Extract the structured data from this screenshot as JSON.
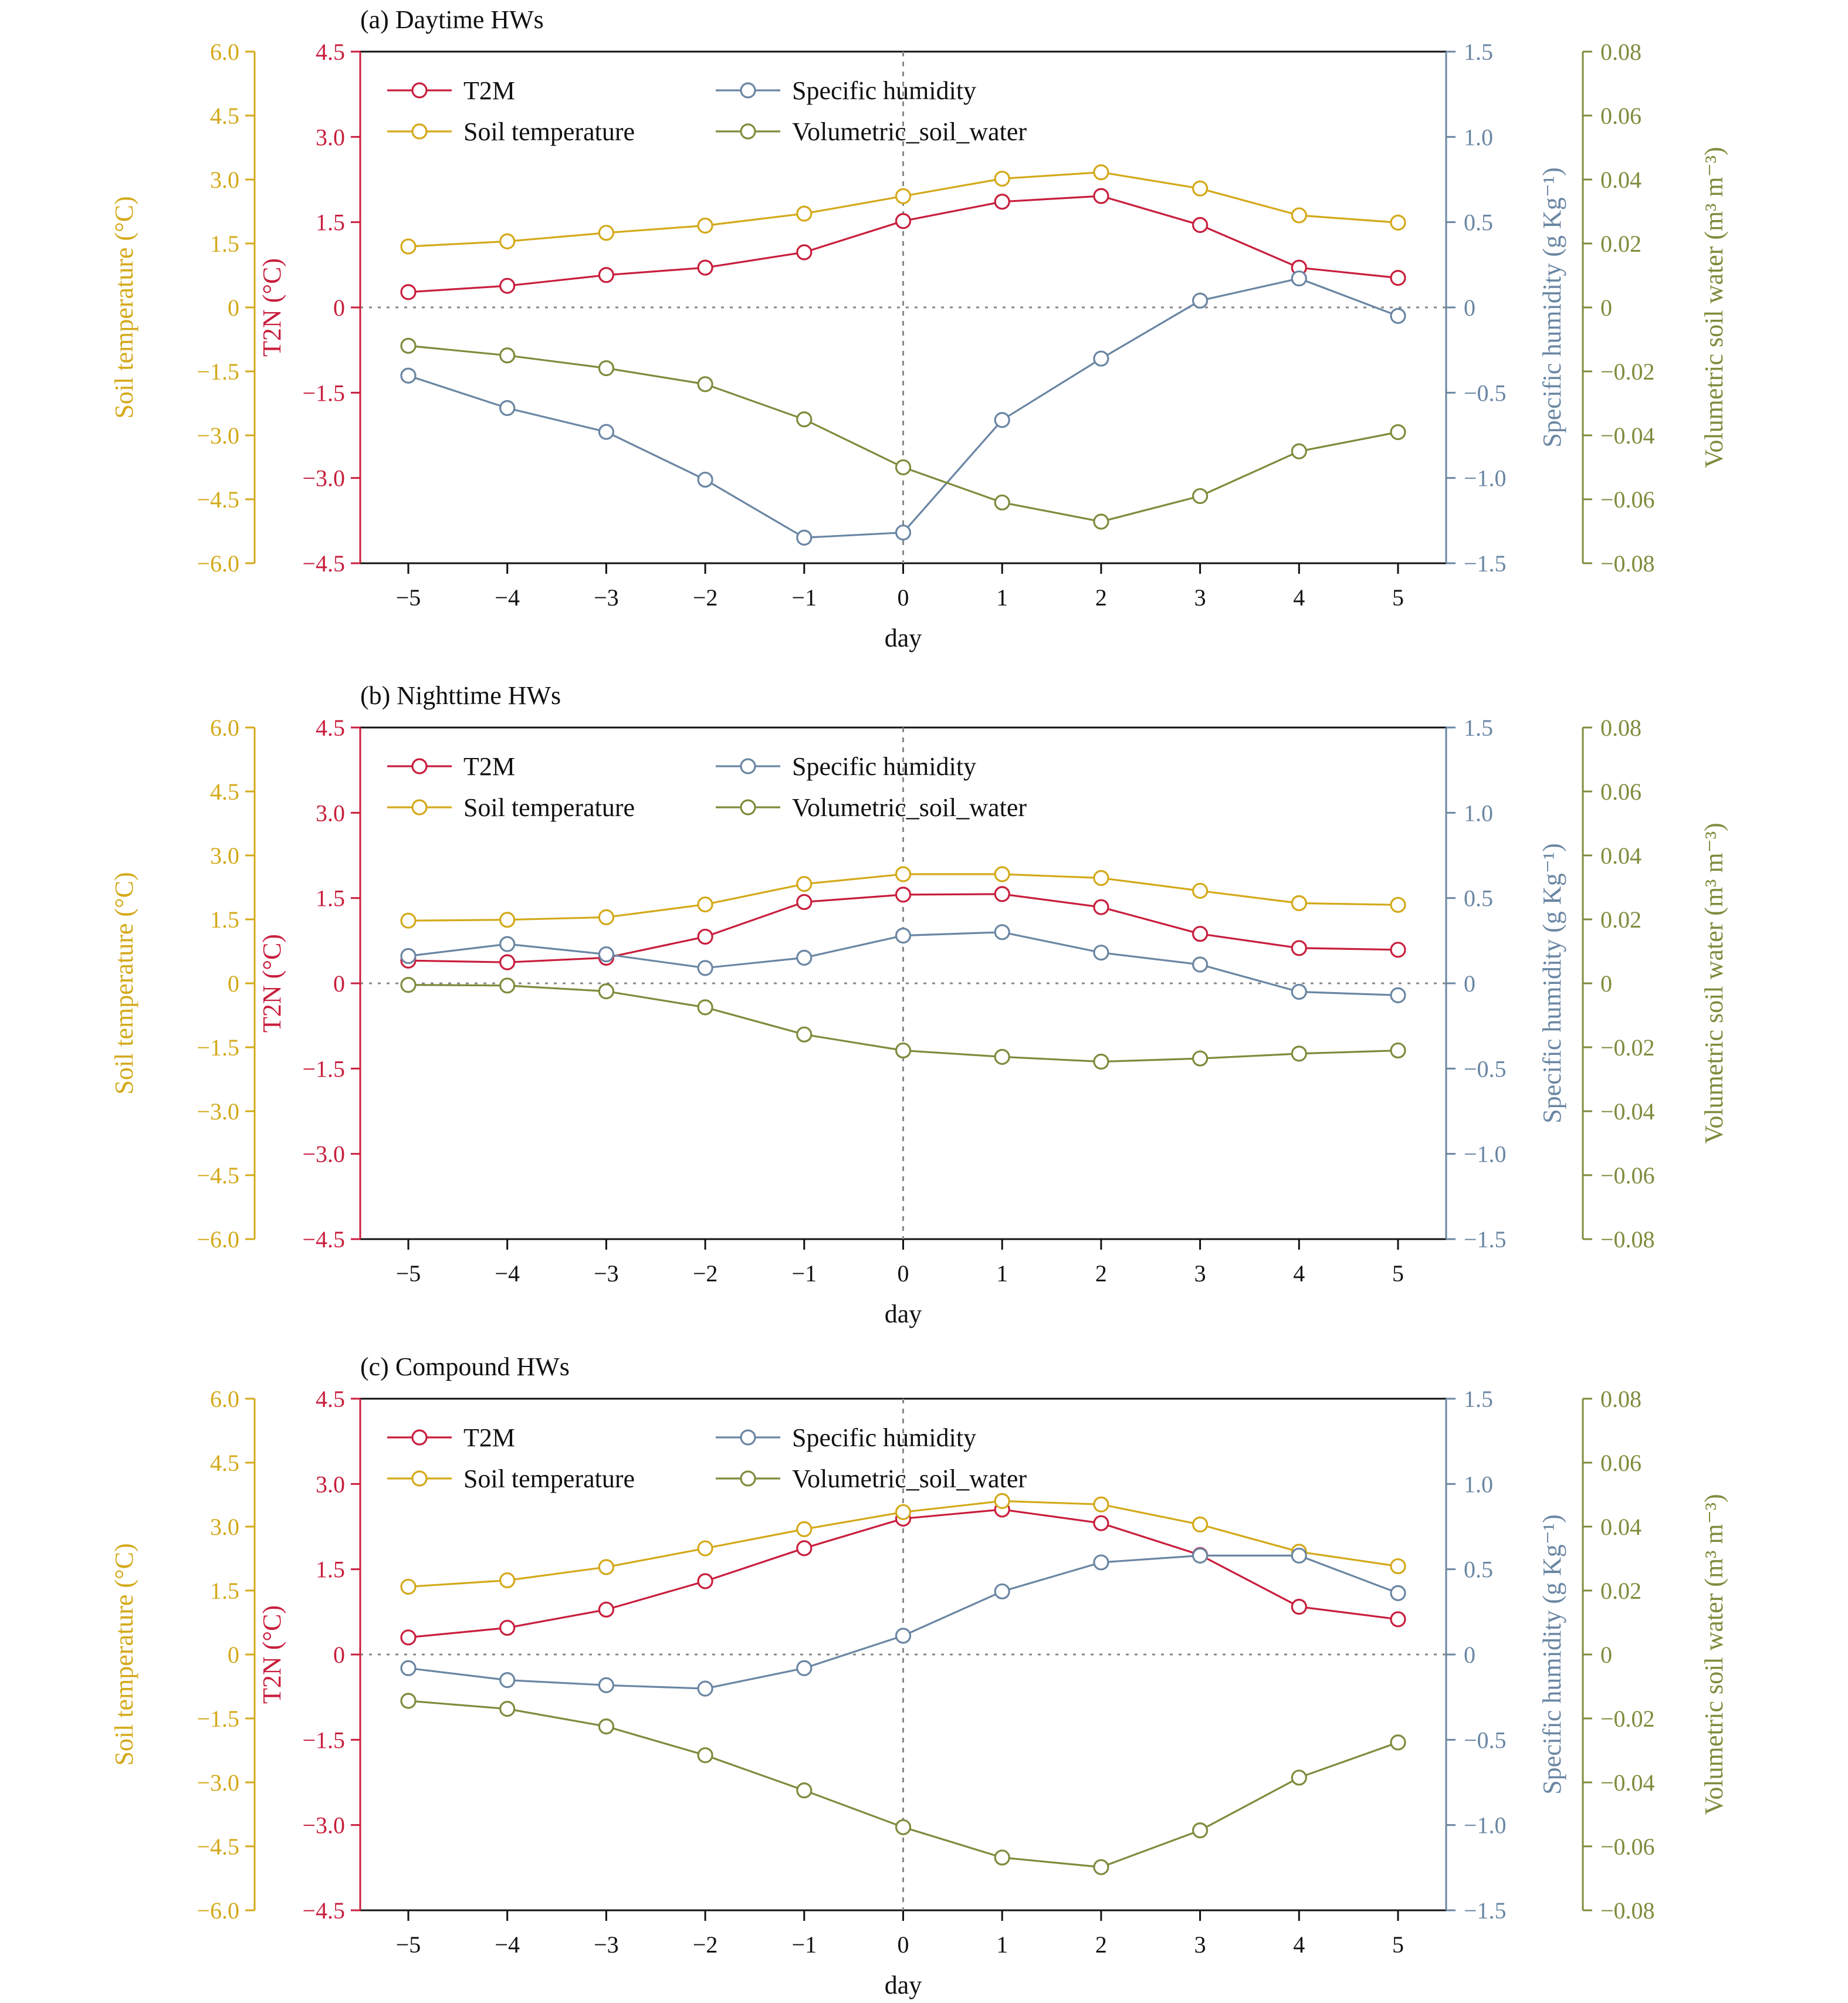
{
  "colors": {
    "t2m": "#c81e3c",
    "soil_temperature": "#d4a91a",
    "specific_humidity": "#6a86a3",
    "volumetric_soil_water": "#7d8c3c"
  },
  "chart_data": [
    {
      "type": "line",
      "title": "(a) Daytime HWs",
      "xlabel": "day",
      "x": [
        -5,
        -4,
        -3,
        -2,
        -1,
        0,
        1,
        2,
        3,
        4,
        5
      ],
      "x_tick_labels": [
        "−5",
        "−4",
        "−3",
        "−2",
        "−1",
        "0",
        "1",
        "2",
        "3",
        "4",
        "5"
      ],
      "axes": {
        "soil": {
          "label": "Soil temperature (°C)",
          "lim": [
            -6,
            6
          ],
          "ticks": [
            "6.0",
            "4.5",
            "3.0",
            "1.5",
            "0",
            "−1.5",
            "−3.0",
            "−4.5",
            "−6.0"
          ]
        },
        "t2m": {
          "label": "T2N (°C)",
          "lim": [
            -4.5,
            4.5
          ],
          "ticks": [
            "4.5",
            "3.0",
            "1.5",
            "0",
            "−1.5",
            "−3.0",
            "−4.5"
          ]
        },
        "humidity": {
          "label": "Specific humidity (g Kg⁻¹)",
          "lim": [
            -1.5,
            1.5
          ],
          "ticks": [
            "1.5",
            "1.0",
            "0.5",
            "0",
            "−0.5",
            "−1.0",
            "−1.5"
          ]
        },
        "water": {
          "label": "Volumetric soil water (m³ m⁻³)",
          "lim": [
            -0.08,
            0.08
          ],
          "ticks": [
            "0.08",
            "0.06",
            "0.04",
            "0.02",
            "0",
            "−0.02",
            "−0.04",
            "−0.06",
            "−0.08"
          ]
        }
      },
      "series": [
        {
          "name": "T2M",
          "axis": "t2m",
          "values": [
            0.27,
            0.38,
            0.57,
            0.7,
            0.97,
            1.52,
            1.86,
            1.96,
            1.45,
            0.7,
            0.52
          ]
        },
        {
          "name": "Soil temperature",
          "axis": "soil",
          "values": [
            1.43,
            1.55,
            1.75,
            1.92,
            2.2,
            2.61,
            3.02,
            3.17,
            2.79,
            2.16,
            1.99
          ]
        },
        {
          "name": "Specific humidity",
          "axis": "humidity",
          "values": [
            -0.4,
            -0.59,
            -0.73,
            -1.01,
            -1.35,
            -1.32,
            -0.66,
            -0.3,
            0.04,
            0.17,
            -0.05
          ]
        },
        {
          "name": "Volumetric_soil_water",
          "axis": "water",
          "values": [
            -0.012,
            -0.015,
            -0.019,
            -0.024,
            -0.035,
            -0.05,
            -0.061,
            -0.067,
            -0.059,
            -0.045,
            -0.039
          ]
        }
      ]
    },
    {
      "type": "line",
      "title": "(b) Nighttime HWs",
      "xlabel": "day",
      "x": [
        -5,
        -4,
        -3,
        -2,
        -1,
        0,
        1,
        2,
        3,
        4,
        5
      ],
      "x_tick_labels": [
        "−5",
        "−4",
        "−3",
        "−2",
        "−1",
        "0",
        "1",
        "2",
        "3",
        "4",
        "5"
      ],
      "axes": {
        "soil": {
          "label": "Soil temperature (°C)",
          "lim": [
            -6,
            6
          ],
          "ticks": [
            "6.0",
            "4.5",
            "3.0",
            "1.5",
            "0",
            "−1.5",
            "−3.0",
            "−4.5",
            "−6.0"
          ]
        },
        "t2m": {
          "label": "T2N (°C)",
          "lim": [
            -4.5,
            4.5
          ],
          "ticks": [
            "4.5",
            "3.0",
            "1.5",
            "0",
            "−1.5",
            "−3.0",
            "−4.5"
          ]
        },
        "humidity": {
          "label": "Specific humidity (g Kg⁻¹)",
          "lim": [
            -1.5,
            1.5
          ],
          "ticks": [
            "1.5",
            "1.0",
            "0.5",
            "0",
            "−0.5",
            "−1.0",
            "−1.5"
          ]
        },
        "water": {
          "label": "Volumetric soil water (m³ m⁻³)",
          "lim": [
            -0.08,
            0.08
          ],
          "ticks": [
            "0.08",
            "0.06",
            "0.04",
            "0.02",
            "0",
            "−0.02",
            "−0.04",
            "−0.06",
            "−0.08"
          ]
        }
      },
      "series": [
        {
          "name": "T2M",
          "axis": "t2m",
          "values": [
            0.4,
            0.37,
            0.45,
            0.82,
            1.43,
            1.56,
            1.57,
            1.34,
            0.87,
            0.62,
            0.59
          ]
        },
        {
          "name": "Soil temperature",
          "axis": "soil",
          "values": [
            1.47,
            1.49,
            1.55,
            1.85,
            2.33,
            2.56,
            2.56,
            2.47,
            2.17,
            1.88,
            1.84
          ]
        },
        {
          "name": "Specific humidity",
          "axis": "humidity",
          "values": [
            0.16,
            0.23,
            0.17,
            0.09,
            0.15,
            0.28,
            0.3,
            0.18,
            0.11,
            -0.05,
            -0.07
          ]
        },
        {
          "name": "Volumetric_soil_water",
          "axis": "water",
          "values": [
            -0.0005,
            -0.0007,
            -0.0025,
            -0.0075,
            -0.016,
            -0.021,
            -0.023,
            -0.0245,
            -0.0235,
            -0.022,
            -0.021
          ]
        }
      ]
    },
    {
      "type": "line",
      "title": "(c) Compound HWs",
      "xlabel": "day",
      "x": [
        -5,
        -4,
        -3,
        -2,
        -1,
        0,
        1,
        2,
        3,
        4,
        5
      ],
      "x_tick_labels": [
        "−5",
        "−4",
        "−3",
        "−2",
        "−1",
        "0",
        "1",
        "2",
        "3",
        "4",
        "5"
      ],
      "axes": {
        "soil": {
          "label": "Soil temperature (°C)",
          "lim": [
            -6,
            6
          ],
          "ticks": [
            "6.0",
            "4.5",
            "3.0",
            "1.5",
            "0",
            "−1.5",
            "−3.0",
            "−4.5",
            "−6.0"
          ]
        },
        "t2m": {
          "label": "T2N (°C)",
          "lim": [
            -4.5,
            4.5
          ],
          "ticks": [
            "4.5",
            "3.0",
            "1.5",
            "0",
            "−1.5",
            "−3.0",
            "−4.5"
          ]
        },
        "humidity": {
          "label": "Specific humidity (g Kg⁻¹)",
          "lim": [
            -1.5,
            1.5
          ],
          "ticks": [
            "1.5",
            "1.0",
            "0.5",
            "0",
            "−0.5",
            "−1.0",
            "−1.5"
          ]
        },
        "water": {
          "label": "Volumetric soil water (m³ m⁻³)",
          "lim": [
            -0.08,
            0.08
          ],
          "ticks": [
            "0.08",
            "0.06",
            "0.04",
            "0.02",
            "0",
            "−0.02",
            "−0.04",
            "−0.06",
            "−0.08"
          ]
        }
      },
      "series": [
        {
          "name": "T2M",
          "axis": "t2m",
          "values": [
            0.3,
            0.47,
            0.79,
            1.29,
            1.87,
            2.39,
            2.55,
            2.31,
            1.75,
            0.84,
            0.62
          ]
        },
        {
          "name": "Soil temperature",
          "axis": "soil",
          "values": [
            1.59,
            1.74,
            2.05,
            2.49,
            2.94,
            3.34,
            3.6,
            3.52,
            3.05,
            2.41,
            2.07
          ]
        },
        {
          "name": "Specific humidity",
          "axis": "humidity",
          "values": [
            -0.08,
            -0.15,
            -0.18,
            -0.2,
            -0.08,
            0.11,
            0.37,
            0.54,
            0.58,
            0.58,
            0.36
          ]
        },
        {
          "name": "Volumetric_soil_water",
          "axis": "water",
          "values": [
            -0.0145,
            -0.017,
            -0.0225,
            -0.0315,
            -0.0425,
            -0.054,
            -0.0635,
            -0.0665,
            -0.055,
            -0.0385,
            -0.0275
          ]
        }
      ]
    }
  ]
}
